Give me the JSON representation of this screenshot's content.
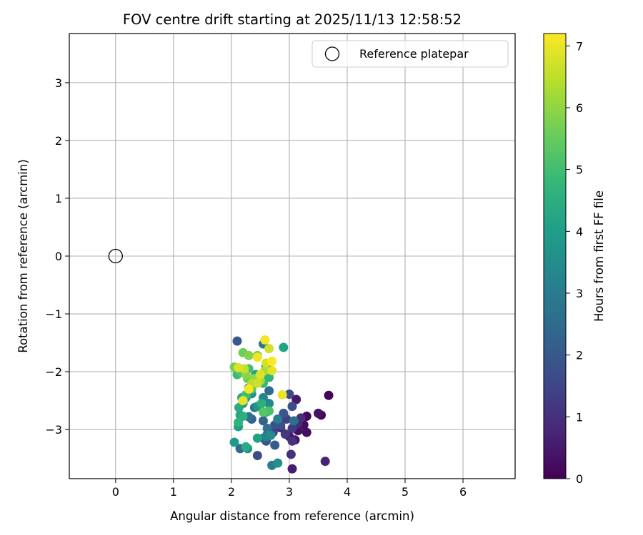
{
  "chart_data": {
    "type": "scatter",
    "title": "FOV centre drift starting at 2025/11/13 12:58:52",
    "xlabel": "Angular distance from reference (arcmin)",
    "ylabel": "Rotation from reference (arcmin)",
    "xlim": [
      -0.8,
      6.9
    ],
    "ylim": [
      -3.85,
      3.85
    ],
    "xticks": [
      0,
      1,
      2,
      3,
      4,
      5,
      6
    ],
    "yticks": [
      -3,
      -2,
      -1,
      0,
      1,
      2,
      3
    ],
    "grid": true,
    "legend": {
      "placement": "top-right",
      "entries": [
        "Reference platepar"
      ]
    },
    "reference_point": {
      "x": 0,
      "y": 0
    },
    "colorbar": {
      "label": "Hours from first FF file",
      "colormap": "viridis",
      "range": [
        0,
        7.2
      ],
      "ticks": [
        0,
        1,
        2,
        3,
        4,
        5,
        6,
        7
      ]
    },
    "points": [
      {
        "x": 3.68,
        "y": -2.41,
        "c": 0.05
      },
      {
        "x": 3.55,
        "y": -2.75,
        "c": 0.1
      },
      {
        "x": 3.3,
        "y": -2.77,
        "c": 0.15
      },
      {
        "x": 3.25,
        "y": -2.92,
        "c": 0.2
      },
      {
        "x": 3.3,
        "y": -3.05,
        "c": 0.25
      },
      {
        "x": 3.15,
        "y": -3.02,
        "c": 0.3
      },
      {
        "x": 3.5,
        "y": -2.72,
        "c": 0.35
      },
      {
        "x": 3.1,
        "y": -3.18,
        "c": 0.4
      },
      {
        "x": 3.0,
        "y": -3.12,
        "c": 0.45
      },
      {
        "x": 3.12,
        "y": -2.48,
        "c": 0.5
      },
      {
        "x": 3.05,
        "y": -3.68,
        "c": 0.55
      },
      {
        "x": 3.62,
        "y": -3.55,
        "c": 0.7
      },
      {
        "x": 2.85,
        "y": -2.97,
        "c": 0.75
      },
      {
        "x": 3.15,
        "y": -2.9,
        "c": 0.85
      },
      {
        "x": 3.2,
        "y": -2.8,
        "c": 0.95
      },
      {
        "x": 3.03,
        "y": -3.43,
        "c": 1.0
      },
      {
        "x": 3.05,
        "y": -3.2,
        "c": 1.05
      },
      {
        "x": 2.93,
        "y": -3.08,
        "c": 1.15
      },
      {
        "x": 3.05,
        "y": -2.98,
        "c": 1.25
      },
      {
        "x": 2.95,
        "y": -2.82,
        "c": 1.4
      },
      {
        "x": 2.72,
        "y": -3.05,
        "c": 1.5
      },
      {
        "x": 3.0,
        "y": -2.39,
        "c": 1.6
      },
      {
        "x": 2.45,
        "y": -3.45,
        "c": 1.65
      },
      {
        "x": 3.05,
        "y": -2.6,
        "c": 1.7
      },
      {
        "x": 2.85,
        "y": -2.93,
        "c": 1.75
      },
      {
        "x": 2.6,
        "y": -3.2,
        "c": 1.8
      },
      {
        "x": 2.75,
        "y": -2.92,
        "c": 1.85
      },
      {
        "x": 2.9,
        "y": -2.72,
        "c": 1.9
      },
      {
        "x": 2.1,
        "y": -1.47,
        "c": 2.0
      },
      {
        "x": 2.75,
        "y": -3.27,
        "c": 2.05
      },
      {
        "x": 2.55,
        "y": -3.15,
        "c": 2.1
      },
      {
        "x": 2.35,
        "y": -2.82,
        "c": 2.15
      },
      {
        "x": 2.6,
        "y": -1.9,
        "c": 2.2
      },
      {
        "x": 2.55,
        "y": -2.85,
        "c": 2.3
      },
      {
        "x": 2.15,
        "y": -3.33,
        "c": 2.5
      },
      {
        "x": 2.65,
        "y": -2.33,
        "c": 2.55
      },
      {
        "x": 3.08,
        "y": -2.85,
        "c": 2.6
      },
      {
        "x": 2.62,
        "y": -2.98,
        "c": 2.65
      },
      {
        "x": 2.3,
        "y": -2.78,
        "c": 2.7
      },
      {
        "x": 2.4,
        "y": -2.62,
        "c": 2.8
      },
      {
        "x": 2.62,
        "y": -3.08,
        "c": 2.85
      },
      {
        "x": 2.55,
        "y": -1.52,
        "c": 2.9
      },
      {
        "x": 2.7,
        "y": -3.62,
        "c": 3.0
      },
      {
        "x": 2.8,
        "y": -2.82,
        "c": 3.05
      },
      {
        "x": 2.6,
        "y": -3.12,
        "c": 3.15
      },
      {
        "x": 2.3,
        "y": -2.28,
        "c": 3.2
      },
      {
        "x": 2.55,
        "y": -2.45,
        "c": 3.3
      },
      {
        "x": 2.65,
        "y": -2.55,
        "c": 3.35
      },
      {
        "x": 2.68,
        "y": -3.1,
        "c": 3.45
      },
      {
        "x": 2.6,
        "y": -2.08,
        "c": 3.5
      },
      {
        "x": 2.28,
        "y": -3.33,
        "c": 3.55
      },
      {
        "x": 2.8,
        "y": -3.58,
        "c": 3.6
      },
      {
        "x": 2.35,
        "y": -2.38,
        "c": 3.65
      },
      {
        "x": 2.25,
        "y": -2.45,
        "c": 3.75
      },
      {
        "x": 2.45,
        "y": -2.6,
        "c": 3.8
      },
      {
        "x": 2.2,
        "y": -2.55,
        "c": 3.9
      },
      {
        "x": 2.05,
        "y": -3.22,
        "c": 3.95
      },
      {
        "x": 2.12,
        "y": -2.95,
        "c": 4.0
      },
      {
        "x": 2.42,
        "y": -2.05,
        "c": 4.05
      },
      {
        "x": 2.45,
        "y": -3.15,
        "c": 4.1
      },
      {
        "x": 2.9,
        "y": -1.58,
        "c": 4.15
      },
      {
        "x": 2.15,
        "y": -2.75,
        "c": 4.2
      },
      {
        "x": 2.18,
        "y": -2.45,
        "c": 4.3
      },
      {
        "x": 2.6,
        "y": -2.7,
        "c": 4.35
      },
      {
        "x": 2.25,
        "y": -3.3,
        "c": 4.4
      },
      {
        "x": 2.13,
        "y": -2.62,
        "c": 4.45
      },
      {
        "x": 2.52,
        "y": -2.55,
        "c": 4.5
      },
      {
        "x": 2.2,
        "y": -2.77,
        "c": 4.55
      },
      {
        "x": 2.12,
        "y": -2.88,
        "c": 4.6
      },
      {
        "x": 2.65,
        "y": -2.1,
        "c": 4.7
      },
      {
        "x": 2.35,
        "y": -2.15,
        "c": 4.75
      },
      {
        "x": 2.55,
        "y": -2.2,
        "c": 4.85
      },
      {
        "x": 2.1,
        "y": -2.05,
        "c": 4.9
      },
      {
        "x": 2.25,
        "y": -2.4,
        "c": 5.0
      },
      {
        "x": 2.3,
        "y": -1.95,
        "c": 5.05
      },
      {
        "x": 2.65,
        "y": -2.68,
        "c": 5.1
      },
      {
        "x": 2.15,
        "y": -2.0,
        "c": 5.2
      },
      {
        "x": 2.55,
        "y": -2.7,
        "c": 5.3
      },
      {
        "x": 2.35,
        "y": -2.3,
        "c": 5.4
      },
      {
        "x": 2.28,
        "y": -2.12,
        "c": 5.5
      },
      {
        "x": 2.2,
        "y": -1.67,
        "c": 5.6
      },
      {
        "x": 2.05,
        "y": -1.92,
        "c": 5.7
      },
      {
        "x": 2.45,
        "y": -1.72,
        "c": 5.75
      },
      {
        "x": 2.3,
        "y": -1.72,
        "c": 5.85
      },
      {
        "x": 2.25,
        "y": -2.05,
        "c": 5.95
      },
      {
        "x": 2.4,
        "y": -2.12,
        "c": 6.05
      },
      {
        "x": 2.5,
        "y": -2.15,
        "c": 6.2
      },
      {
        "x": 2.58,
        "y": -1.98,
        "c": 6.3
      },
      {
        "x": 2.35,
        "y": -2.2,
        "c": 6.4
      },
      {
        "x": 2.22,
        "y": -1.95,
        "c": 6.55
      },
      {
        "x": 2.45,
        "y": -2.2,
        "c": 6.65
      },
      {
        "x": 2.65,
        "y": -1.6,
        "c": 6.7
      },
      {
        "x": 2.6,
        "y": -1.85,
        "c": 6.75
      },
      {
        "x": 2.12,
        "y": -1.93,
        "c": 6.8
      },
      {
        "x": 2.5,
        "y": -2.05,
        "c": 6.85
      },
      {
        "x": 2.7,
        "y": -1.98,
        "c": 6.9
      },
      {
        "x": 2.2,
        "y": -2.5,
        "c": 6.95
      },
      {
        "x": 2.88,
        "y": -2.4,
        "c": 7.0
      },
      {
        "x": 2.45,
        "y": -1.75,
        "c": 7.05
      },
      {
        "x": 2.58,
        "y": -1.45,
        "c": 7.1
      },
      {
        "x": 2.3,
        "y": -2.3,
        "c": 7.15
      },
      {
        "x": 2.7,
        "y": -1.82,
        "c": 7.2
      }
    ]
  }
}
